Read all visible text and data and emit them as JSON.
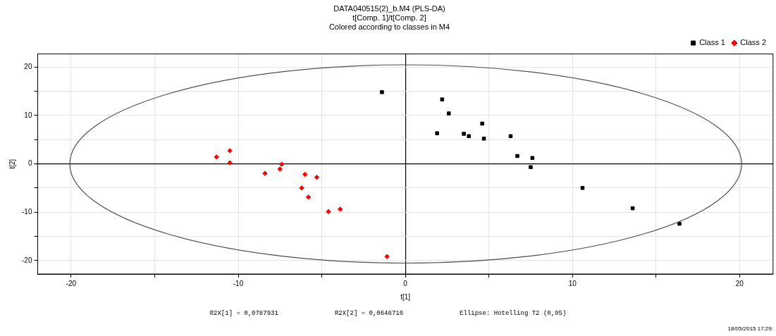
{
  "chart_data": {
    "type": "scatter",
    "title": "DATA040515(2)_b.M4 (PLS-DA)",
    "subtitle": "t[Comp. 1]/t[Comp. 2]\nColored according to classes in M4",
    "xlabel": "t[1]",
    "ylabel": "t[2]",
    "series": [
      {
        "name": "Class 1",
        "color": "#000000",
        "marker": "square",
        "x": [
          -1.4,
          2.2,
          2.6,
          1.9,
          3.5,
          3.8,
          4.6,
          4.7,
          6.3,
          6.7,
          7.6,
          7.5,
          10.6,
          13.6,
          16.4
        ],
        "values": [
          14.8,
          13.3,
          10.4,
          6.3,
          6.2,
          5.7,
          8.3,
          5.2,
          5.7,
          1.6,
          1.2,
          -0.7,
          -5,
          -9.2,
          -12.4
        ]
      },
      {
        "name": "Class 2",
        "color": "#ff0000",
        "marker": "diamond",
        "x": [
          -11.3,
          -10.5,
          -10.5,
          -7.4,
          -7.5,
          -8.4,
          -6,
          -5.3,
          -6.2,
          -5.8,
          -4.6,
          -3.9,
          -1.1
        ],
        "values": [
          1.4,
          2.7,
          0.2,
          -0.1,
          -1.1,
          -2,
          -2.2,
          -2.8,
          -5,
          -6.9,
          -9.9,
          -9.4,
          -19.2
        ]
      }
    ],
    "xlim": [
      -22,
      22
    ],
    "ylim": [
      -22.8,
      22.7
    ],
    "xticks": [
      -20,
      {
        "value": -15,
        "label": null
      },
      -10,
      {
        "value": -5,
        "label": null
      },
      0,
      {
        "value": 5,
        "label": null
      },
      10,
      {
        "value": 15,
        "label": null
      },
      20
    ],
    "yticks": [
      -20,
      {
        "value": -15,
        "label": null
      },
      -10,
      {
        "value": -5,
        "label": null
      },
      0,
      {
        "value": 5,
        "label": null
      },
      10,
      {
        "value": 15,
        "label": null
      },
      20
    ],
    "grid": true,
    "legend": "top right",
    "annotations": [
      "R2X[1] = 0,0787931",
      "R2X[2] = 0,0646716",
      "Ellipse: Hotelling T2 (0,95)",
      "18/05/2015 17:29:"
    ]
  }
}
